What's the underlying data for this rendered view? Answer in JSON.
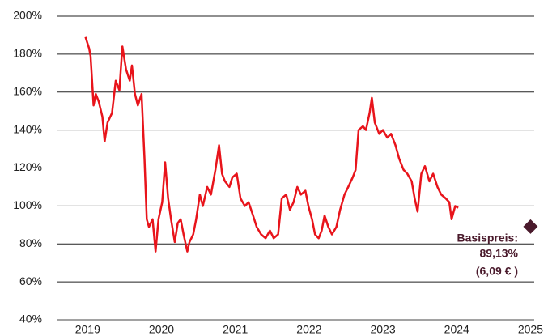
{
  "chart_data": {
    "type": "line",
    "x": [
      2018.97,
      2019.02,
      2019.04,
      2019.08,
      2019.11,
      2019.15,
      2019.2,
      2019.23,
      2019.27,
      2019.33,
      2019.38,
      2019.43,
      2019.47,
      2019.52,
      2019.57,
      2019.6,
      2019.64,
      2019.68,
      2019.73,
      2019.77,
      2019.8,
      2019.83,
      2019.88,
      2019.92,
      2019.96,
      2020.01,
      2020.05,
      2020.09,
      2020.13,
      2020.18,
      2020.22,
      2020.26,
      2020.3,
      2020.35,
      2020.38,
      2020.43,
      2020.47,
      2020.52,
      2020.56,
      2020.62,
      2020.67,
      2020.73,
      2020.78,
      2020.82,
      2020.86,
      2020.92,
      2020.96,
      2021.02,
      2021.07,
      2021.13,
      2021.18,
      2021.24,
      2021.29,
      2021.35,
      2021.41,
      2021.47,
      2021.52,
      2021.58,
      2021.63,
      2021.69,
      2021.74,
      2021.79,
      2021.84,
      2021.89,
      2021.95,
      2021.99,
      2022.04,
      2022.08,
      2022.13,
      2022.17,
      2022.21,
      2022.26,
      2022.31,
      2022.37,
      2022.42,
      2022.48,
      2022.53,
      2022.59,
      2022.63,
      2022.67,
      2022.73,
      2022.77,
      2022.82,
      2022.85,
      2022.89,
      2022.95,
      2023.0,
      2023.06,
      2023.11,
      2023.17,
      2023.22,
      2023.28,
      2023.33,
      2023.39,
      2023.43,
      2023.47,
      2023.52,
      2023.57,
      2023.63,
      2023.68,
      2023.74,
      2023.79,
      2023.85,
      2023.9,
      2023.93,
      2023.98,
      2024.02
    ],
    "series": [
      {
        "color": "#e8141b",
        "values": [
          189,
          183,
          179,
          153,
          159,
          155,
          147,
          134,
          144,
          149,
          166,
          161,
          184,
          172,
          166,
          174,
          159,
          153,
          159,
          125,
          93,
          89,
          93,
          76,
          93,
          102,
          123,
          104,
          93,
          81,
          91,
          93,
          85,
          76,
          81,
          85,
          93,
          106,
          100,
          110,
          106,
          119,
          132,
          117,
          113,
          110,
          115,
          117,
          104,
          100,
          102,
          95,
          89,
          85,
          83,
          87,
          83,
          85,
          104,
          106,
          98,
          102,
          110,
          106,
          108,
          100,
          93,
          85,
          83,
          87,
          95,
          89,
          85,
          89,
          98,
          106,
          110,
          115,
          119,
          140,
          142,
          140,
          149,
          157,
          144,
          138,
          140,
          136,
          138,
          132,
          125,
          119,
          117,
          113,
          104,
          97,
          117,
          121,
          113,
          117,
          110,
          106,
          104,
          102,
          93,
          100,
          99
        ]
      }
    ],
    "xlim": [
      2018.58,
      2025.05
    ],
    "xticks": [
      2019,
      2020,
      2021,
      2022,
      2023,
      2024,
      2025
    ],
    "ylim": [
      40,
      200
    ],
    "yticks": [
      {
        "value": 40,
        "label": "40%"
      },
      {
        "value": 60,
        "label": "60%"
      },
      {
        "value": 80,
        "label": "80%"
      },
      {
        "value": 100,
        "label": "100%"
      },
      {
        "value": 120,
        "label": "120%"
      },
      {
        "value": 140,
        "label": "140%"
      },
      {
        "value": 160,
        "label": "160%"
      },
      {
        "value": 180,
        "label": "180%"
      },
      {
        "value": 200,
        "label": "200%"
      }
    ],
    "grid": true,
    "annotation": {
      "title": "Basispreis:",
      "x": 2025,
      "value": 89.13,
      "label": "89,13%",
      "note": "(6,09 € )",
      "color": "#4a1a2c"
    }
  }
}
